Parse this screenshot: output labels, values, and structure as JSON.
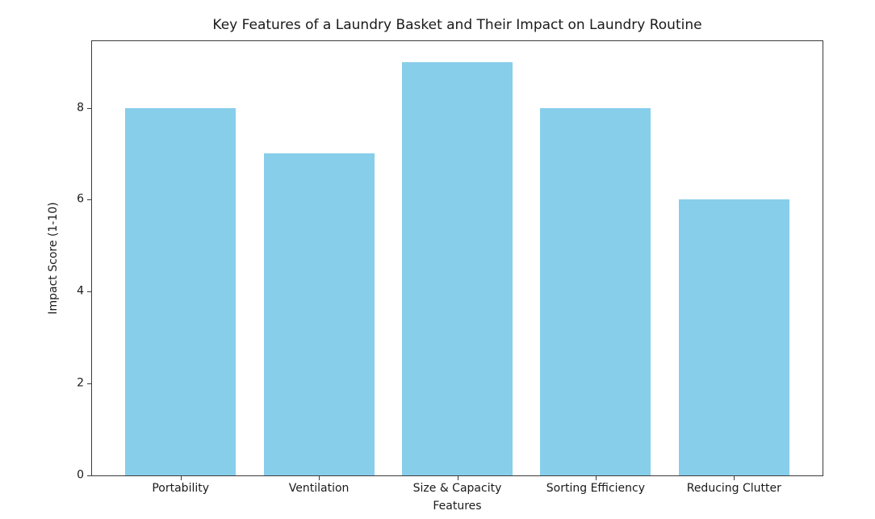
{
  "chart_data": {
    "type": "bar",
    "title": "Key Features of a Laundry Basket and Their Impact on Laundry Routine",
    "categories": [
      "Portability",
      "Ventilation",
      "Size & Capacity",
      "Sorting Efficiency",
      "Reducing Clutter"
    ],
    "values": [
      8,
      7,
      9,
      8,
      6
    ],
    "xlabel": "Features",
    "ylabel": "Impact Score (1-10)",
    "ylim": [
      0,
      9.45
    ],
    "yticks": [
      0,
      2,
      4,
      6,
      8
    ],
    "bar_color": "#87CEEB",
    "bar_width_fraction": 0.8,
    "x_edge_margin": 0.64,
    "grid": false,
    "legend": "none"
  }
}
